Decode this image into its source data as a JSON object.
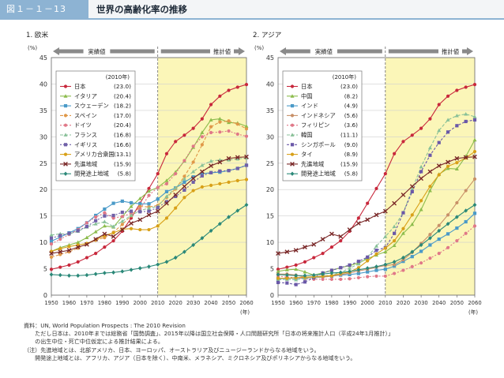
{
  "header": {
    "figure_id": "図１－１－13",
    "title": "世界の高齢化率の推移"
  },
  "chart_data": [
    {
      "type": "line",
      "title": "1. 欧米",
      "ylabel": "(%)",
      "xlabel": "(年)",
      "ylim": [
        0,
        45
      ],
      "xlim": [
        1950,
        2060
      ],
      "yticks": [
        "0",
        "5",
        "10",
        "15",
        "20",
        "25",
        "30",
        "35",
        "40",
        "45"
      ],
      "xticks": [
        "1950",
        "1960",
        "1970",
        "1980",
        "1990",
        "2000",
        "2010",
        "2020",
        "2030",
        "2040",
        "2050",
        "2060"
      ],
      "actual_label": "実績値",
      "projection_label": "推計値",
      "legend_title": "(2010年)",
      "x": [
        1950,
        1955,
        1960,
        1965,
        1970,
        1975,
        1980,
        1985,
        1990,
        1995,
        2000,
        2005,
        2010,
        2015,
        2020,
        2025,
        2030,
        2035,
        2040,
        2045,
        2050,
        2055,
        2060
      ],
      "series": [
        {
          "name": "日本",
          "value2010": "(23.0)",
          "color": "#c8283c",
          "marker": "circle",
          "dash": "",
          "values": [
            4.9,
            5.3,
            5.7,
            6.3,
            7.1,
            7.9,
            9.1,
            10.3,
            12.1,
            14.6,
            17.4,
            20.2,
            23.0,
            26.8,
            29.1,
            30.3,
            31.6,
            33.4,
            36.1,
            37.7,
            38.8,
            39.4,
            39.9
          ]
        },
        {
          "name": "イタリア",
          "value2010": "(20.4)",
          "color": "#8cbc4c",
          "marker": "triangle",
          "dash": "",
          "values": [
            8.3,
            9.0,
            9.5,
            10.0,
            10.9,
            12.0,
            13.1,
            12.9,
            14.9,
            16.8,
            18.3,
            19.7,
            20.4,
            21.7,
            23.3,
            25.4,
            28.0,
            30.8,
            33.2,
            33.4,
            32.7,
            32.6,
            32.0
          ]
        },
        {
          "name": "スウェーデン",
          "value2010": "(18.2)",
          "color": "#4a9ac8",
          "marker": "square",
          "dash": "",
          "values": [
            10.2,
            11.0,
            11.8,
            12.6,
            13.7,
            15.1,
            16.3,
            17.4,
            17.8,
            17.5,
            17.3,
            17.3,
            18.2,
            19.6,
            20.3,
            21.4,
            22.4,
            23.0,
            23.2,
            23.3,
            23.6,
            24.0,
            24.6
          ]
        },
        {
          "name": "スペイン",
          "value2010": "(17.0)",
          "color": "#e09848",
          "marker": "circle",
          "dash": "4,2",
          "values": [
            7.2,
            7.7,
            8.2,
            8.9,
            9.7,
            10.4,
            10.9,
            11.9,
            13.4,
            15.0,
            16.8,
            16.7,
            17.0,
            18.5,
            20.1,
            22.5,
            25.2,
            28.5,
            31.9,
            32.8,
            33.0,
            32.4,
            31.5
          ]
        },
        {
          "name": "ドイツ",
          "value2010": "(20.4)",
          "color": "#e07888",
          "marker": "circle",
          "dash": "2,2",
          "values": [
            9.7,
            10.6,
            11.5,
            12.4,
            13.7,
            14.8,
            15.6,
            14.6,
            14.9,
            15.5,
            16.3,
            18.9,
            20.4,
            21.1,
            23.0,
            25.5,
            28.2,
            30.0,
            30.8,
            30.9,
            31.1,
            30.5,
            30.1
          ]
        },
        {
          "name": "フランス",
          "value2010": "(16.8)",
          "color": "#88c098",
          "marker": "triangle",
          "dash": "4,2",
          "values": [
            11.4,
            11.6,
            11.6,
            12.1,
            12.9,
            13.5,
            13.9,
            13.0,
            14.0,
            15.1,
            16.0,
            16.5,
            16.8,
            18.7,
            20.3,
            22.0,
            23.4,
            24.6,
            25.4,
            25.6,
            25.6,
            25.8,
            26.0
          ]
        },
        {
          "name": "イギリス",
          "value2010": "(16.6)",
          "color": "#7060a8",
          "marker": "square",
          "dash": "2,2",
          "values": [
            10.8,
            11.3,
            11.7,
            12.2,
            13.0,
            14.1,
            15.0,
            15.1,
            15.7,
            15.9,
            15.8,
            15.9,
            16.6,
            17.7,
            18.7,
            19.9,
            21.4,
            22.6,
            23.2,
            23.5,
            23.6,
            24.0,
            24.6
          ]
        },
        {
          "name": "アメリカ合衆国",
          "value2010": "(13.1)",
          "color": "#d8a018",
          "marker": "circle",
          "dash": "",
          "values": [
            8.3,
            8.8,
            9.2,
            9.5,
            9.8,
            10.5,
            11.3,
            11.8,
            12.5,
            12.6,
            12.4,
            12.4,
            13.1,
            14.6,
            16.5,
            18.5,
            19.8,
            20.5,
            20.8,
            21.1,
            21.4,
            21.7,
            21.9
          ]
        },
        {
          "name": "先進地域",
          "value2010": "(15.9)",
          "color": "#7a2828",
          "marker": "x",
          "dash": "",
          "values": [
            7.9,
            8.2,
            8.5,
            9.1,
            9.6,
            10.6,
            11.6,
            11.1,
            12.4,
            13.6,
            14.3,
            15.2,
            15.9,
            17.4,
            19.0,
            20.6,
            22.1,
            23.4,
            24.5,
            25.2,
            25.9,
            26.1,
            26.2
          ]
        },
        {
          "name": "開発途上地域",
          "value2010": "(5.8)",
          "color": "#2a8878",
          "marker": "diamond",
          "dash": "",
          "values": [
            3.9,
            3.8,
            3.7,
            3.7,
            3.8,
            4.0,
            4.2,
            4.3,
            4.5,
            4.8,
            5.1,
            5.4,
            5.8,
            6.3,
            7.1,
            8.2,
            9.5,
            10.8,
            12.2,
            13.5,
            14.8,
            16.0,
            17.1
          ]
        }
      ]
    },
    {
      "type": "line",
      "title": "2. アジア",
      "ylabel": "(%)",
      "xlabel": "(年)",
      "ylim": [
        0,
        45
      ],
      "xlim": [
        1950,
        2060
      ],
      "yticks": [
        "0",
        "5",
        "10",
        "15",
        "20",
        "25",
        "30",
        "35",
        "40",
        "45"
      ],
      "xticks": [
        "1950",
        "1960",
        "1970",
        "1980",
        "1990",
        "2000",
        "2010",
        "2020",
        "2030",
        "2040",
        "2050",
        "2060"
      ],
      "actual_label": "実績値",
      "projection_label": "推計値",
      "legend_title": "(2010年)",
      "x": [
        1950,
        1955,
        1960,
        1965,
        1970,
        1975,
        1980,
        1985,
        1990,
        1995,
        2000,
        2005,
        2010,
        2015,
        2020,
        2025,
        2030,
        2035,
        2040,
        2045,
        2050,
        2055,
        2060
      ],
      "series": [
        {
          "name": "日本",
          "value2010": "(23.0)",
          "color": "#c8283c",
          "marker": "circle",
          "dash": "",
          "values": [
            4.9,
            5.3,
            5.7,
            6.3,
            7.1,
            7.9,
            9.1,
            10.3,
            12.1,
            14.6,
            17.4,
            20.2,
            23.0,
            26.8,
            29.1,
            30.3,
            31.6,
            33.4,
            36.1,
            37.7,
            38.8,
            39.4,
            39.9
          ]
        },
        {
          "name": "中国",
          "value2010": "(8.2)",
          "color": "#8cbc4c",
          "marker": "triangle",
          "dash": "",
          "values": [
            4.5,
            4.8,
            4.9,
            4.4,
            3.8,
            4.2,
            4.7,
            5.2,
            5.6,
            6.1,
            6.9,
            7.6,
            8.2,
            9.4,
            11.7,
            13.4,
            16.2,
            19.8,
            22.9,
            24.0,
            23.9,
            26.3,
            29.4
          ]
        },
        {
          "name": "インド",
          "value2010": "(4.9)",
          "color": "#4a9ac8",
          "marker": "square",
          "dash": "",
          "values": [
            3.1,
            3.2,
            3.2,
            3.3,
            3.3,
            3.6,
            3.6,
            3.8,
            3.9,
            4.1,
            4.4,
            4.7,
            4.9,
            5.5,
            6.4,
            7.3,
            8.3,
            9.5,
            10.6,
            11.6,
            12.7,
            13.9,
            15.5
          ]
        },
        {
          "name": "インドネシア",
          "value2010": "(5.6)",
          "color": "#c89068",
          "marker": "circle",
          "dash": "",
          "values": [
            4.0,
            4.0,
            3.8,
            3.4,
            3.3,
            3.4,
            3.6,
            3.9,
            4.2,
            4.6,
            4.9,
            5.3,
            5.6,
            5.8,
            6.7,
            8.1,
            9.8,
            11.5,
            13.2,
            15.2,
            17.5,
            19.8,
            22.0
          ]
        },
        {
          "name": "フィリピン",
          "value2010": "(3.6)",
          "color": "#e07888",
          "marker": "circle",
          "dash": "2,2",
          "values": [
            3.6,
            3.4,
            3.3,
            3.1,
            3.0,
            3.0,
            3.0,
            3.0,
            3.1,
            3.3,
            3.5,
            3.6,
            3.6,
            4.1,
            4.7,
            5.4,
            6.1,
            7.0,
            7.9,
            9.0,
            10.3,
            11.7,
            13.1
          ]
        },
        {
          "name": "韓国",
          "value2010": "(11.1)",
          "color": "#88c098",
          "marker": "triangle",
          "dash": "4,2",
          "values": [
            2.9,
            3.0,
            2.9,
            3.2,
            3.3,
            3.6,
            3.8,
            4.3,
            5.1,
            5.9,
            7.2,
            9.3,
            11.1,
            13.0,
            15.6,
            20.1,
            24.3,
            27.9,
            31.2,
            33.2,
            34.0,
            34.3,
            33.8
          ]
        },
        {
          "name": "シンガポール",
          "value2010": "(9.0)",
          "color": "#6a58a8",
          "marker": "square",
          "dash": "3,2",
          "values": [
            2.4,
            2.3,
            2.0,
            2.5,
            3.3,
            4.2,
            4.7,
            5.2,
            5.7,
            6.4,
            7.2,
            8.5,
            9.0,
            11.7,
            15.6,
            19.6,
            23.4,
            26.5,
            28.9,
            30.9,
            32.1,
            32.9,
            33.2
          ]
        },
        {
          "name": "タイ",
          "value2010": "(8.9)",
          "color": "#d8a018",
          "marker": "circle",
          "dash": "",
          "values": [
            3.2,
            3.2,
            3.3,
            3.4,
            3.5,
            3.6,
            3.7,
            4.1,
            4.4,
            5.2,
            6.5,
            7.8,
            8.9,
            10.3,
            12.6,
            15.2,
            17.9,
            20.6,
            22.8,
            24.4,
            25.1,
            26.0,
            27.2
          ]
        },
        {
          "name": "先進地域",
          "value2010": "(15.9)",
          "color": "#7a2828",
          "marker": "x",
          "dash": "",
          "values": [
            7.9,
            8.2,
            8.5,
            9.1,
            9.6,
            10.6,
            11.6,
            11.1,
            12.4,
            13.6,
            14.3,
            15.2,
            15.9,
            17.4,
            19.0,
            20.6,
            22.1,
            23.4,
            24.5,
            25.2,
            25.9,
            26.1,
            26.2
          ]
        },
        {
          "name": "開発途上地域",
          "value2010": "(5.8)",
          "color": "#2a8878",
          "marker": "diamond",
          "dash": "",
          "values": [
            3.9,
            3.8,
            3.7,
            3.7,
            3.8,
            4.0,
            4.2,
            4.3,
            4.5,
            4.8,
            5.1,
            5.4,
            5.8,
            6.3,
            7.1,
            8.2,
            9.5,
            10.8,
            12.2,
            13.5,
            14.8,
            16.0,
            17.1
          ]
        }
      ]
    }
  ],
  "notes": [
    "資料：UN, World Population Prospects : The 2010 Revision",
    "　　ただし日本は、2010年までは総務省「国勢調査」、2015年以降は国立社会保障・人口問題研究所「日本の将来推計人口（平成24年1月推計）」",
    "　　の出生中位・死亡中位仮定による推計結果による。",
    "（注）先進地域とは、北部アメリカ、日本、ヨーロッパ、オーストラリア及びニュージーランドからなる地域をいう。",
    "　　開発途上地域とは、アフリカ、アジア（日本を除く）、中南米、メラネシア、ミクロネシア及びポリネシアからなる地域をいう。"
  ]
}
